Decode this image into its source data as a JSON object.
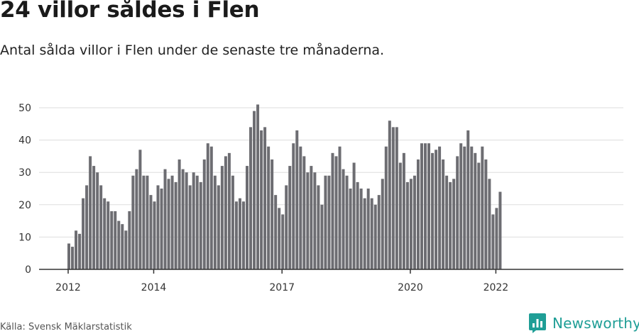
{
  "title": "24 villor såldes i Flen",
  "subtitle": "Antal sålda villor i Flen under de senaste tre månaderna.",
  "source": "Källa: Svensk Mäklarstatistik",
  "brand": {
    "name": "Newsworthy",
    "icon": "newsworthy-logo-icon",
    "color": "#1f9e96"
  },
  "colors": {
    "bar": "#6d6d72",
    "highlight": "#17968f",
    "grid": "#dddddd",
    "axis": "#333333"
  },
  "chart_data": {
    "type": "bar",
    "title": "24 villor såldes i Flen",
    "subtitle": "Antal sålda villor i Flen under de senaste tre månaderna.",
    "xlabel": "",
    "ylabel": "",
    "ylim": [
      0,
      50
    ],
    "yticks": [
      0,
      10,
      20,
      30,
      40,
      50
    ],
    "grid": true,
    "legend": "none",
    "x_start": "2012-01",
    "x_frequency": "monthly",
    "x_tick_labels": [
      {
        "label": "2012",
        "month": "2012-01"
      },
      {
        "label": "2014",
        "month": "2014-01"
      },
      {
        "label": "2017",
        "month": "2017-01"
      },
      {
        "label": "2020",
        "month": "2020-01"
      },
      {
        "label": "2022",
        "month": "2022-01"
      }
    ],
    "highlight": {
      "month": "2022-03",
      "label": "24"
    },
    "values": [
      8,
      7,
      12,
      11,
      22,
      26,
      35,
      32,
      30,
      26,
      22,
      21,
      18,
      18,
      15,
      14,
      12,
      18,
      29,
      31,
      37,
      29,
      29,
      23,
      21,
      26,
      25,
      31,
      28,
      29,
      27,
      34,
      31,
      30,
      26,
      30,
      29,
      27,
      34,
      39,
      38,
      29,
      26,
      32,
      35,
      36,
      29,
      21,
      22,
      21,
      32,
      44,
      49,
      51,
      43,
      44,
      38,
      34,
      23,
      19,
      17,
      26,
      32,
      39,
      43,
      38,
      35,
      30,
      32,
      30,
      26,
      20,
      29,
      29,
      36,
      35,
      38,
      31,
      29,
      25,
      33,
      27,
      25,
      22,
      25,
      22,
      20,
      23,
      28,
      38,
      46,
      44,
      44,
      33,
      36,
      27,
      28,
      29,
      34,
      39,
      39,
      39,
      36,
      37,
      38,
      34,
      29,
      27,
      28,
      35,
      39,
      38,
      43,
      38,
      36,
      33,
      38,
      34,
      28,
      17,
      19,
      24
    ]
  }
}
